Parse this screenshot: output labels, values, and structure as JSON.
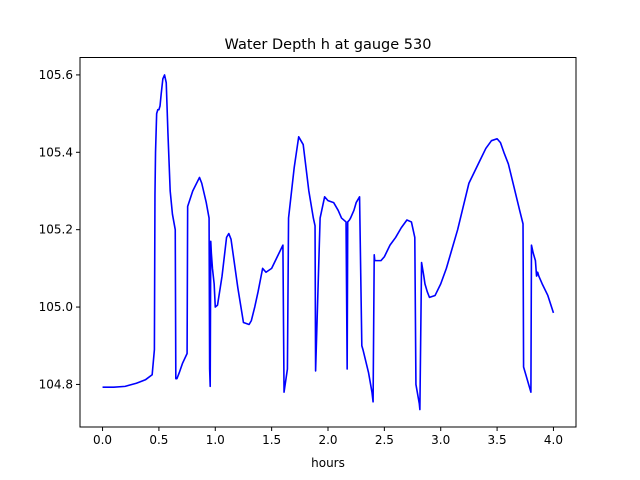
{
  "chart_data": {
    "type": "line",
    "title": "Water Depth h at gauge 530",
    "xlabel": "hours",
    "ylabel": "",
    "xlim": [
      -0.2,
      4.2
    ],
    "ylim": [
      104.69,
      105.645
    ],
    "xticks": [
      0.0,
      0.5,
      1.0,
      1.5,
      2.0,
      2.5,
      3.0,
      3.5,
      4.0
    ],
    "xtick_labels": [
      "0.0",
      "0.5",
      "1.0",
      "1.5",
      "2.0",
      "2.5",
      "3.0",
      "3.5",
      "4.0"
    ],
    "yticks": [
      104.8,
      105.0,
      105.2,
      105.4,
      105.6
    ],
    "ytick_labels": [
      "104.8",
      "105.0",
      "105.2",
      "105.4",
      "105.6"
    ],
    "grid": false,
    "legend": "none",
    "series": [
      {
        "color": "#0000ff",
        "x": [
          0.0,
          0.1,
          0.2,
          0.3,
          0.38,
          0.44,
          0.46,
          0.465,
          0.47,
          0.475,
          0.48,
          0.49,
          0.5,
          0.51,
          0.52,
          0.535,
          0.55,
          0.565,
          0.58,
          0.6,
          0.62,
          0.645,
          0.65,
          0.66,
          0.68,
          0.71,
          0.75,
          0.755,
          0.8,
          0.86,
          0.88,
          0.92,
          0.945,
          0.95,
          0.955,
          0.96,
          0.965,
          0.975,
          0.99,
          1.0,
          1.02,
          1.06,
          1.1,
          1.12,
          1.14,
          1.2,
          1.25,
          1.3,
          1.32,
          1.35,
          1.38,
          1.42,
          1.45,
          1.5,
          1.55,
          1.6,
          1.61,
          1.64,
          1.65,
          1.7,
          1.74,
          1.78,
          1.83,
          1.87,
          1.885,
          1.89,
          1.93,
          1.97,
          2.0,
          2.05,
          2.09,
          2.12,
          2.16,
          2.17,
          2.175,
          2.19,
          2.2,
          2.23,
          2.25,
          2.28,
          2.3,
          2.31,
          2.36,
          2.39,
          2.4,
          2.41,
          2.415,
          2.44,
          2.47,
          2.5,
          2.55,
          2.6,
          2.65,
          2.7,
          2.74,
          2.77,
          2.78,
          2.81,
          2.815,
          2.83,
          2.85,
          2.86,
          2.88,
          2.9,
          2.95,
          3.0,
          3.05,
          3.1,
          3.15,
          3.2,
          3.25,
          3.3,
          3.35,
          3.4,
          3.45,
          3.5,
          3.53,
          3.56,
          3.6,
          3.65,
          3.7,
          3.73,
          3.735,
          3.76,
          3.8,
          3.805,
          3.82,
          3.84,
          3.85,
          3.86,
          3.87,
          3.9,
          3.95,
          4.0
        ],
        "y": [
          104.793,
          104.793,
          104.795,
          104.803,
          104.812,
          104.825,
          104.89,
          105.29,
          105.4,
          105.45,
          105.5,
          105.51,
          105.51,
          105.52,
          105.55,
          105.59,
          105.6,
          105.58,
          105.45,
          105.3,
          105.24,
          105.2,
          104.815,
          104.815,
          104.83,
          104.855,
          104.88,
          105.26,
          105.3,
          105.335,
          105.32,
          105.27,
          105.23,
          104.84,
          104.795,
          105.17,
          105.14,
          105.1,
          105.06,
          105.0,
          105.005,
          105.08,
          105.18,
          105.19,
          105.175,
          105.05,
          104.96,
          104.955,
          104.965,
          105.0,
          105.04,
          105.1,
          105.09,
          105.1,
          105.13,
          105.16,
          104.78,
          104.84,
          105.23,
          105.36,
          105.44,
          105.42,
          105.3,
          105.23,
          105.21,
          104.835,
          105.23,
          105.285,
          105.275,
          105.27,
          105.25,
          105.23,
          105.22,
          104.84,
          105.22,
          105.225,
          105.23,
          105.25,
          105.27,
          105.285,
          104.9,
          104.89,
          104.83,
          104.78,
          104.755,
          105.135,
          105.12,
          105.12,
          105.12,
          105.13,
          105.16,
          105.18,
          105.205,
          105.225,
          105.22,
          105.18,
          104.8,
          104.75,
          104.735,
          105.115,
          105.08,
          105.06,
          105.04,
          105.025,
          105.03,
          105.06,
          105.1,
          105.15,
          105.2,
          105.26,
          105.32,
          105.35,
          105.38,
          105.41,
          105.43,
          105.435,
          105.425,
          105.4,
          105.37,
          105.31,
          105.25,
          105.215,
          104.845,
          104.82,
          104.78,
          105.16,
          105.14,
          105.12,
          105.08,
          105.09,
          105.08,
          105.06,
          105.03,
          104.985
        ]
      }
    ]
  }
}
